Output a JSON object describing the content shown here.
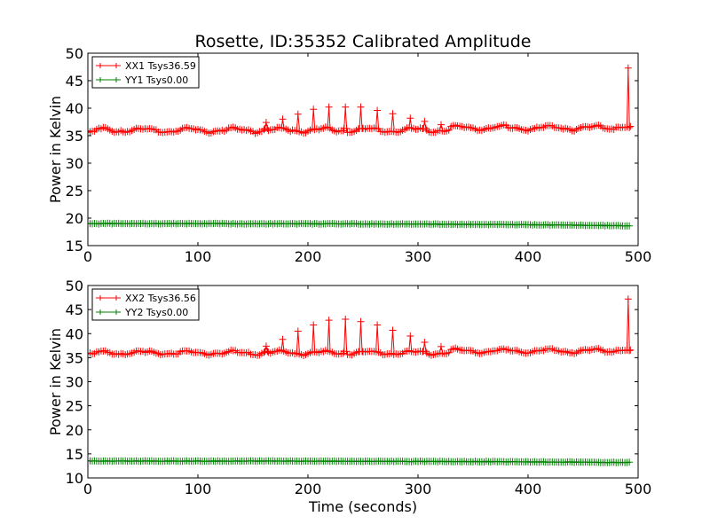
{
  "figure": {
    "title": "Rosette, ID:35352 Calibrated Amplitude",
    "background": "#ffffff"
  },
  "chart_data": [
    {
      "type": "line",
      "title": "Rosette, ID:35352 Calibrated Amplitude",
      "xlabel": "",
      "ylabel": "Power in Kelvin",
      "xlim": [
        0,
        500
      ],
      "ylim": [
        15,
        50
      ],
      "xticks": [
        "0",
        "100",
        "200",
        "300",
        "400",
        "500"
      ],
      "yticks": [
        "15",
        "20",
        "25",
        "30",
        "35",
        "40",
        "45",
        "50"
      ],
      "grid": false,
      "legend_position": "top-left",
      "series": [
        {
          "name": "XX1 Tsys36.59",
          "color": "#ff0000",
          "marker": "+",
          "baseline": 36.0,
          "peaks": [
            {
              "x": 162,
              "y": 37.4
            },
            {
              "x": 177,
              "y": 38.0
            },
            {
              "x": 191,
              "y": 38.9
            },
            {
              "x": 205,
              "y": 39.8
            },
            {
              "x": 219,
              "y": 40.2
            },
            {
              "x": 234,
              "y": 40.2
            },
            {
              "x": 248,
              "y": 40.2
            },
            {
              "x": 263,
              "y": 39.6
            },
            {
              "x": 277,
              "y": 39.0
            },
            {
              "x": 293,
              "y": 38.2
            },
            {
              "x": 306,
              "y": 37.6
            },
            {
              "x": 321,
              "y": 37.0
            },
            {
              "x": 491,
              "y": 47.3
            }
          ],
          "end_value": 36.7
        },
        {
          "name": "YY1 Tsys0.00",
          "color": "#008000",
          "marker": "+",
          "start_value": 19.0,
          "end_value": 18.6
        }
      ]
    },
    {
      "type": "line",
      "title": "",
      "xlabel": "Time (seconds)",
      "ylabel": "Power in Kelvin",
      "xlim": [
        0,
        500
      ],
      "ylim": [
        10,
        50
      ],
      "xticks": [
        "0",
        "100",
        "200",
        "300",
        "400",
        "500"
      ],
      "yticks": [
        "10",
        "15",
        "20",
        "25",
        "30",
        "35",
        "40",
        "45",
        "50"
      ],
      "grid": false,
      "legend_position": "top-left",
      "series": [
        {
          "name": "XX2 Tsys36.56",
          "color": "#ff0000",
          "marker": "+",
          "baseline": 36.0,
          "peaks": [
            {
              "x": 162,
              "y": 37.4
            },
            {
              "x": 177,
              "y": 38.8
            },
            {
              "x": 191,
              "y": 40.5
            },
            {
              "x": 205,
              "y": 41.8
            },
            {
              "x": 219,
              "y": 42.8
            },
            {
              "x": 234,
              "y": 43.0
            },
            {
              "x": 248,
              "y": 42.5
            },
            {
              "x": 263,
              "y": 41.8
            },
            {
              "x": 277,
              "y": 40.7
            },
            {
              "x": 293,
              "y": 39.5
            },
            {
              "x": 306,
              "y": 38.2
            },
            {
              "x": 321,
              "y": 37.3
            },
            {
              "x": 491,
              "y": 47.2
            }
          ],
          "end_value": 36.6
        },
        {
          "name": "YY2 Tsys0.00",
          "color": "#008000",
          "marker": "+",
          "start_value": 13.5,
          "end_value": 13.2
        }
      ]
    }
  ]
}
